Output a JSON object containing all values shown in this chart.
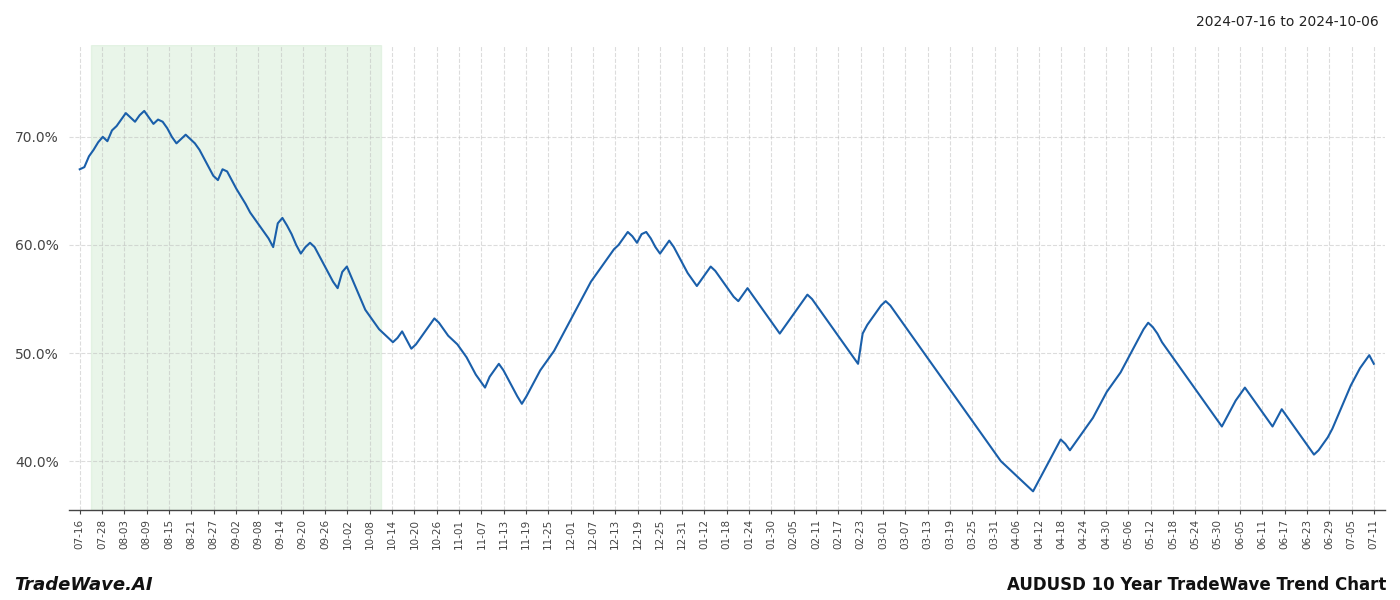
{
  "title_top_right": "2024-07-16 to 2024-10-06",
  "title_bottom_right": "AUDUSD 10 Year TradeWave Trend Chart",
  "title_bottom_left": "TradeWave.AI",
  "background_color": "#ffffff",
  "line_color": "#1a5faa",
  "line_width": 1.5,
  "shade_color": "#d4ecd4",
  "shade_alpha": 0.5,
  "ylim_low": 0.355,
  "ylim_high": 0.785,
  "yticks": [
    0.4,
    0.5,
    0.6,
    0.7
  ],
  "ytick_labels": [
    "40.0%",
    "50.0%",
    "60.0%",
    "70.0%"
  ],
  "grid_color": "#bbbbbb",
  "grid_linestyle": "--",
  "grid_alpha": 0.5,
  "shade_xstart": 1,
  "shade_xend": 14,
  "x_labels": [
    "07-16",
    "07-28",
    "08-03",
    "08-09",
    "08-15",
    "08-21",
    "08-27",
    "09-02",
    "09-08",
    "09-14",
    "09-20",
    "09-26",
    "10-02",
    "10-08",
    "10-14",
    "10-20",
    "10-26",
    "11-01",
    "11-07",
    "11-13",
    "11-19",
    "11-25",
    "12-01",
    "12-07",
    "12-13",
    "12-19",
    "12-25",
    "12-31",
    "01-12",
    "01-18",
    "01-24",
    "01-30",
    "02-05",
    "02-11",
    "02-17",
    "02-23",
    "03-01",
    "03-07",
    "03-13",
    "03-19",
    "03-25",
    "03-31",
    "04-06",
    "04-12",
    "04-18",
    "04-24",
    "04-30",
    "05-06",
    "05-12",
    "05-18",
    "05-24",
    "05-30",
    "06-05",
    "06-11",
    "06-17",
    "06-23",
    "06-29",
    "07-05",
    "07-11"
  ],
  "y_values": [
    0.67,
    0.672,
    0.682,
    0.688,
    0.695,
    0.7,
    0.696,
    0.706,
    0.71,
    0.716,
    0.722,
    0.718,
    0.714,
    0.72,
    0.724,
    0.718,
    0.712,
    0.716,
    0.714,
    0.708,
    0.7,
    0.694,
    0.698,
    0.702,
    0.698,
    0.694,
    0.688,
    0.68,
    0.672,
    0.664,
    0.66,
    0.67,
    0.668,
    0.66,
    0.652,
    0.645,
    0.638,
    0.63,
    0.624,
    0.618,
    0.612,
    0.606,
    0.598,
    0.62,
    0.625,
    0.618,
    0.61,
    0.6,
    0.592,
    0.598,
    0.602,
    0.598,
    0.59,
    0.582,
    0.574,
    0.566,
    0.56,
    0.575,
    0.58,
    0.57,
    0.56,
    0.55,
    0.54,
    0.534,
    0.528,
    0.522,
    0.518,
    0.514,
    0.51,
    0.514,
    0.52,
    0.512,
    0.504,
    0.508,
    0.514,
    0.52,
    0.526,
    0.532,
    0.528,
    0.522,
    0.516,
    0.512,
    0.508,
    0.502,
    0.496,
    0.488,
    0.48,
    0.474,
    0.468,
    0.478,
    0.484,
    0.49,
    0.484,
    0.476,
    0.468,
    0.46,
    0.453,
    0.46,
    0.468,
    0.476,
    0.484,
    0.49,
    0.496,
    0.502,
    0.51,
    0.518,
    0.526,
    0.534,
    0.542,
    0.55,
    0.558,
    0.566,
    0.572,
    0.578,
    0.584,
    0.59,
    0.596,
    0.6,
    0.606,
    0.612,
    0.608,
    0.602,
    0.61,
    0.612,
    0.606,
    0.598,
    0.592,
    0.598,
    0.604,
    0.598,
    0.59,
    0.582,
    0.574,
    0.568,
    0.562,
    0.568,
    0.574,
    0.58,
    0.576,
    0.57,
    0.564,
    0.558,
    0.552,
    0.548,
    0.554,
    0.56,
    0.554,
    0.548,
    0.542,
    0.536,
    0.53,
    0.524,
    0.518,
    0.524,
    0.53,
    0.536,
    0.542,
    0.548,
    0.554,
    0.55,
    0.544,
    0.538,
    0.532,
    0.526,
    0.52,
    0.514,
    0.508,
    0.502,
    0.496,
    0.49,
    0.518,
    0.526,
    0.532,
    0.538,
    0.544,
    0.548,
    0.544,
    0.538,
    0.532,
    0.526,
    0.52,
    0.514,
    0.508,
    0.502,
    0.496,
    0.49,
    0.484,
    0.478,
    0.472,
    0.466,
    0.46,
    0.454,
    0.448,
    0.442,
    0.436,
    0.43,
    0.424,
    0.418,
    0.412,
    0.406,
    0.4,
    0.396,
    0.392,
    0.388,
    0.384,
    0.38,
    0.376,
    0.372,
    0.38,
    0.388,
    0.396,
    0.404,
    0.412,
    0.42,
    0.416,
    0.41,
    0.416,
    0.422,
    0.428,
    0.434,
    0.44,
    0.448,
    0.456,
    0.464,
    0.47,
    0.476,
    0.482,
    0.49,
    0.498,
    0.506,
    0.514,
    0.522,
    0.528,
    0.524,
    0.518,
    0.51,
    0.504,
    0.498,
    0.492,
    0.486,
    0.48,
    0.474,
    0.468,
    0.462,
    0.456,
    0.45,
    0.444,
    0.438,
    0.432,
    0.44,
    0.448,
    0.456,
    0.462,
    0.468,
    0.462,
    0.456,
    0.45,
    0.444,
    0.438,
    0.432,
    0.44,
    0.448,
    0.442,
    0.436,
    0.43,
    0.424,
    0.418,
    0.412,
    0.406,
    0.41,
    0.416,
    0.422,
    0.43,
    0.44,
    0.45,
    0.46,
    0.47,
    0.478,
    0.486,
    0.492,
    0.498,
    0.49
  ]
}
